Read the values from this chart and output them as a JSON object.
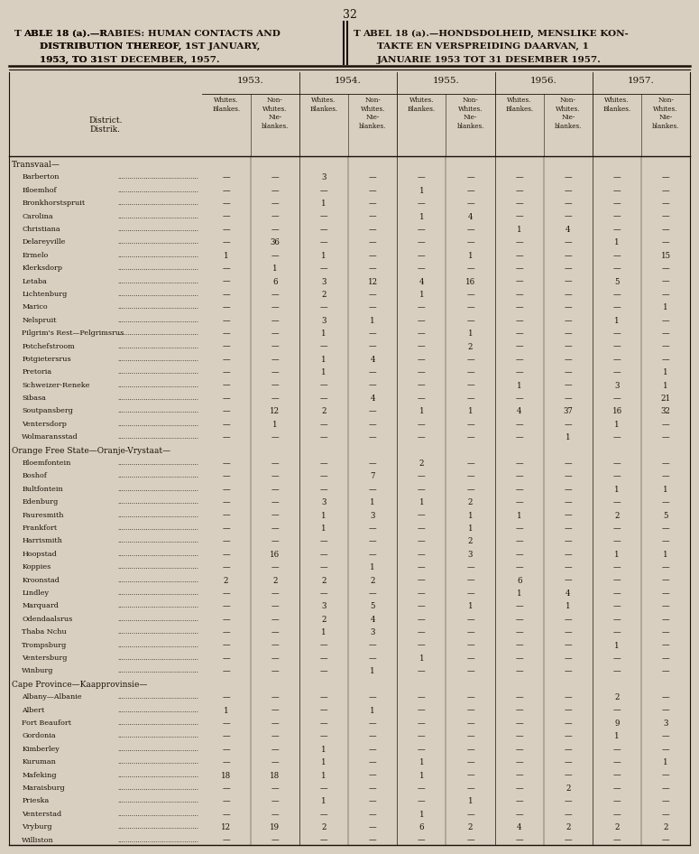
{
  "page_number": "32",
  "bg_color": "#d8cfc0",
  "text_color": "#1a1008",
  "line_color": "#1a1008",
  "title_left_line1": "Table 18 (a).—Rabies: Human Contacts and",
  "title_left_line2": "Distribution Thereof, 1st January,",
  "title_left_line3": "1953, to 31st December, 1957.",
  "title_right_line1": "Tabel 18 (a).—Hondsdolheid, Menslike Kon-",
  "title_right_line2": "takte en Verspreiding Daarvan, 1",
  "title_right_line3": "Januarie 1953 tot 31 Desember 1957.",
  "years": [
    "1953.",
    "1954.",
    "1955.",
    "1956.",
    "1957."
  ],
  "rows": [
    {
      "section": "Transvaal—",
      "district": null,
      "data": null
    },
    {
      "section": null,
      "district": "Barberton",
      "data": [
        "—",
        "—",
        "3",
        "—",
        "—",
        "—",
        "—",
        "—",
        "—",
        "—"
      ]
    },
    {
      "section": null,
      "district": "Bloemhof",
      "data": [
        "—",
        "—",
        "—",
        "—",
        "1",
        "—",
        "—",
        "—",
        "—",
        "—"
      ]
    },
    {
      "section": null,
      "district": "Bronkhorstspruit",
      "data": [
        "—",
        "—",
        "1",
        "—",
        "—",
        "—",
        "—",
        "—",
        "—",
        "—"
      ]
    },
    {
      "section": null,
      "district": "Carolina",
      "data": [
        "—",
        "—",
        "—",
        "—",
        "1",
        "4",
        "—",
        "—",
        "—",
        "—"
      ]
    },
    {
      "section": null,
      "district": "Christiana",
      "data": [
        "—",
        "—",
        "—",
        "—",
        "—",
        "—",
        "1",
        "4",
        "—",
        "—"
      ]
    },
    {
      "section": null,
      "district": "Delareyville",
      "data": [
        "—",
        "36",
        "—",
        "—",
        "—",
        "—",
        "—",
        "—",
        "1",
        "—"
      ]
    },
    {
      "section": null,
      "district": "Ermelo",
      "data": [
        "1",
        "—",
        "1",
        "—",
        "—",
        "1",
        "—",
        "—",
        "—",
        "15"
      ]
    },
    {
      "section": null,
      "district": "Klerksdorp",
      "data": [
        "—",
        "1",
        "—",
        "—",
        "—",
        "—",
        "—",
        "—",
        "—",
        "—"
      ]
    },
    {
      "section": null,
      "district": "Letaba",
      "data": [
        "—",
        "6",
        "3",
        "12",
        "4",
        "16",
        "—",
        "—",
        "5",
        "—"
      ]
    },
    {
      "section": null,
      "district": "Lichtenburg",
      "data": [
        "—",
        "—",
        "2",
        "—",
        "1",
        "—",
        "—",
        "—",
        "—",
        "—"
      ]
    },
    {
      "section": null,
      "district": "Marico",
      "data": [
        "—",
        "—",
        "—",
        "—",
        "—",
        "—",
        "—",
        "—",
        "—",
        "1"
      ]
    },
    {
      "section": null,
      "district": "Nelspruit",
      "data": [
        "—",
        "—",
        "3",
        "1",
        "—",
        "—",
        "—",
        "—",
        "1",
        "—"
      ]
    },
    {
      "section": null,
      "district": "Pilgrim's Rest—Pelgrimsrus",
      "data": [
        "—",
        "—",
        "1",
        "—",
        "—",
        "1",
        "—",
        "—",
        "—",
        "—"
      ]
    },
    {
      "section": null,
      "district": "Potchefstroom",
      "data": [
        "—",
        "—",
        "—",
        "—",
        "—",
        "2",
        "—",
        "—",
        "—",
        "—"
      ]
    },
    {
      "section": null,
      "district": "Potgietersrus",
      "data": [
        "—",
        "—",
        "1",
        "4",
        "—",
        "—",
        "—",
        "—",
        "—",
        "—"
      ]
    },
    {
      "section": null,
      "district": "Pretoria",
      "data": [
        "—",
        "—",
        "1",
        "—",
        "—",
        "—",
        "—",
        "—",
        "—",
        "1"
      ]
    },
    {
      "section": null,
      "district": "Schweizer-Reneke",
      "data": [
        "—",
        "—",
        "—",
        "—",
        "—",
        "—",
        "1",
        "—",
        "3",
        "1"
      ]
    },
    {
      "section": null,
      "district": "Sibasa",
      "data": [
        "—",
        "—",
        "—",
        "4",
        "—",
        "—",
        "—",
        "—",
        "—",
        "21"
      ]
    },
    {
      "section": null,
      "district": "Soutpansberg",
      "data": [
        "—",
        "12",
        "2",
        "—",
        "1",
        "1",
        "4",
        "37",
        "16",
        "32"
      ]
    },
    {
      "section": null,
      "district": "Ventersdorp",
      "data": [
        "—",
        "1",
        "—",
        "—",
        "—",
        "—",
        "—",
        "—",
        "1",
        "—"
      ]
    },
    {
      "section": null,
      "district": "Wolmaransstad",
      "data": [
        "—",
        "—",
        "—",
        "—",
        "—",
        "—",
        "—",
        "1",
        "—",
        "—"
      ]
    },
    {
      "section": "Orange Free State—Oranje-Vrystaat—",
      "district": null,
      "data": null
    },
    {
      "section": null,
      "district": "Bloemfontein",
      "data": [
        "—",
        "—",
        "—",
        "—",
        "2",
        "—",
        "—",
        "—",
        "—",
        "—"
      ]
    },
    {
      "section": null,
      "district": "Boshof",
      "data": [
        "—",
        "—",
        "—",
        "7",
        "—",
        "—",
        "—",
        "—",
        "—",
        "—"
      ]
    },
    {
      "section": null,
      "district": "Bultfontein",
      "data": [
        "—",
        "—",
        "—",
        "—",
        "—",
        "—",
        "—",
        "—",
        "1",
        "1"
      ]
    },
    {
      "section": null,
      "district": "Edenburg",
      "data": [
        "—",
        "—",
        "3",
        "1",
        "1",
        "2",
        "—",
        "—",
        "—",
        "—"
      ]
    },
    {
      "section": null,
      "district": "Fauresmith",
      "data": [
        "—",
        "—",
        "1",
        "3",
        "—",
        "1",
        "1",
        "—",
        "2",
        "5"
      ]
    },
    {
      "section": null,
      "district": "Frankfort",
      "data": [
        "—",
        "—",
        "1",
        "—",
        "—",
        "1",
        "—",
        "—",
        "—",
        "—"
      ]
    },
    {
      "section": null,
      "district": "Harrismith",
      "data": [
        "—",
        "—",
        "—",
        "—",
        "—",
        "2",
        "—",
        "—",
        "—",
        "—"
      ]
    },
    {
      "section": null,
      "district": "Hoopstad",
      "data": [
        "—",
        "16",
        "—",
        "—",
        "—",
        "3",
        "—",
        "—",
        "1",
        "1"
      ]
    },
    {
      "section": null,
      "district": "Koppies",
      "data": [
        "—",
        "—",
        "—",
        "1",
        "—",
        "—",
        "—",
        "—",
        "—",
        "—"
      ]
    },
    {
      "section": null,
      "district": "Kroonstad",
      "data": [
        "2",
        "2",
        "2",
        "2",
        "—",
        "—",
        "6",
        "—",
        "—",
        "—"
      ]
    },
    {
      "section": null,
      "district": "Lindley",
      "data": [
        "—",
        "—",
        "—",
        "—",
        "—",
        "—",
        "1",
        "4",
        "—",
        "—"
      ]
    },
    {
      "section": null,
      "district": "Marquard",
      "data": [
        "—",
        "—",
        "3",
        "5",
        "—",
        "1",
        "—",
        "1",
        "—",
        "—"
      ]
    },
    {
      "section": null,
      "district": "Odendaalsrus",
      "data": [
        "—",
        "—",
        "2",
        "4",
        "—",
        "—",
        "—",
        "—",
        "—",
        "—"
      ]
    },
    {
      "section": null,
      "district": "Thaba Nchu",
      "data": [
        "—",
        "—",
        "1",
        "3",
        "—",
        "—",
        "—",
        "—",
        "—",
        "—"
      ]
    },
    {
      "section": null,
      "district": "Trompsburg",
      "data": [
        "—",
        "—",
        "—",
        "—",
        "—",
        "—",
        "—",
        "—",
        "1",
        "—"
      ]
    },
    {
      "section": null,
      "district": "Ventersburg",
      "data": [
        "—",
        "—",
        "—",
        "—",
        "1",
        "—",
        "—",
        "—",
        "—",
        "—"
      ]
    },
    {
      "section": null,
      "district": "Winburg",
      "data": [
        "—",
        "—",
        "—",
        "1",
        "—",
        "—",
        "—",
        "—",
        "—",
        "—"
      ]
    },
    {
      "section": "Cape Province—Kaapprovinsie—",
      "district": null,
      "data": null
    },
    {
      "section": null,
      "district": "Albany—Albanie",
      "data": [
        "—",
        "—",
        "—",
        "—",
        "—",
        "—",
        "—",
        "—",
        "2",
        "—"
      ]
    },
    {
      "section": null,
      "district": "Albert",
      "data": [
        "1",
        "—",
        "—",
        "1",
        "—",
        "—",
        "—",
        "—",
        "—",
        "—"
      ]
    },
    {
      "section": null,
      "district": "Fort Beaufort",
      "data": [
        "—",
        "—",
        "—",
        "—",
        "—",
        "—",
        "—",
        "—",
        "9",
        "3"
      ]
    },
    {
      "section": null,
      "district": "Gordonia",
      "data": [
        "—",
        "—",
        "—",
        "—",
        "—",
        "—",
        "—",
        "—",
        "1",
        "—"
      ]
    },
    {
      "section": null,
      "district": "Kimberley",
      "data": [
        "—",
        "—",
        "1",
        "—",
        "—",
        "—",
        "—",
        "—",
        "—",
        "—"
      ]
    },
    {
      "section": null,
      "district": "Kuruman",
      "data": [
        "—",
        "—",
        "1",
        "—",
        "1",
        "—",
        "—",
        "—",
        "—",
        "1"
      ]
    },
    {
      "section": null,
      "district": "Mafeking",
      "data": [
        "18",
        "18",
        "1",
        "—",
        "1",
        "—",
        "—",
        "—",
        "—",
        "—"
      ]
    },
    {
      "section": null,
      "district": "Maraisburg",
      "data": [
        "—",
        "—",
        "—",
        "—",
        "—",
        "—",
        "—",
        "2",
        "—",
        "—"
      ]
    },
    {
      "section": null,
      "district": "Prieska",
      "data": [
        "—",
        "—",
        "1",
        "—",
        "—",
        "1",
        "—",
        "—",
        "—",
        "—"
      ]
    },
    {
      "section": null,
      "district": "Venterstad",
      "data": [
        "—",
        "—",
        "—",
        "—",
        "1",
        "—",
        "—",
        "—",
        "—",
        "—"
      ]
    },
    {
      "section": null,
      "district": "Vryburg",
      "data": [
        "12",
        "19",
        "2",
        "—",
        "6",
        "2",
        "4",
        "2",
        "2",
        "2"
      ]
    },
    {
      "section": null,
      "district": "Williston",
      "data": [
        "—",
        "—",
        "—",
        "—",
        "—",
        "—",
        "—",
        "—",
        "—",
        "—"
      ]
    }
  ]
}
